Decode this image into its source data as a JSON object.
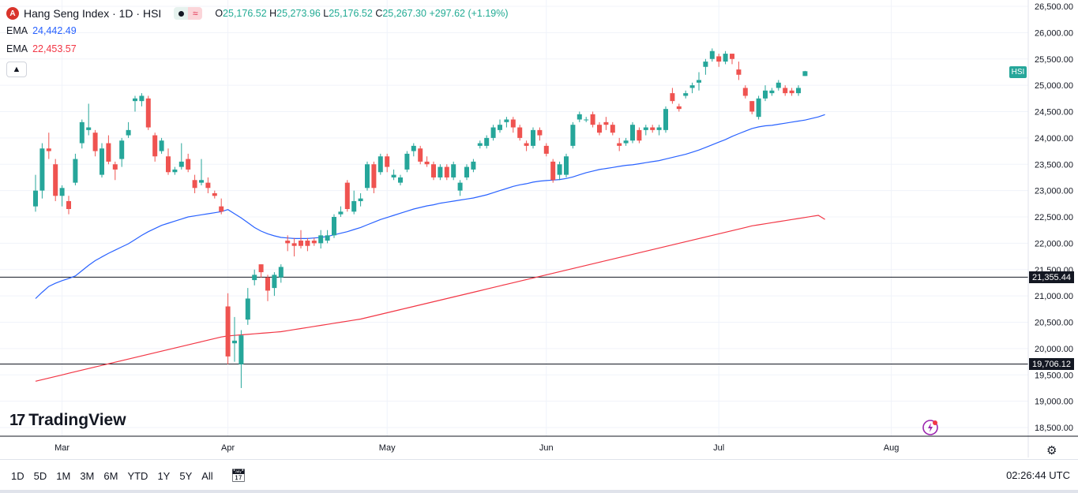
{
  "legend": {
    "symbol_icon": "A",
    "title": "Hang Seng Index · 1D · HSI",
    "ohlc": {
      "o_label": "O",
      "o": "25,176.52",
      "h_label": "H",
      "h": "25,273.96",
      "l_label": "L",
      "l": "25,176.52",
      "c_label": "C",
      "c": "25,267.30",
      "change": "+297.62 (+1.19%)"
    },
    "ema1": {
      "label": "EMA",
      "value": "24,442.49",
      "color": "#2962ff"
    },
    "ema2": {
      "label": "EMA",
      "value": "22,453.57",
      "color": "#f23645"
    },
    "collapse_icon": "chevron-up-icon"
  },
  "branding": {
    "logo_mark": "17",
    "logo_text": "TradingView"
  },
  "price_axis": {
    "symbol_tag": "HSI",
    "ticks": [
      "26,500.00",
      "26,000.00",
      "25,500.00",
      "25,000.00",
      "24,500.00",
      "24,000.00",
      "23,500.00",
      "23,000.00",
      "22,500.00",
      "22,000.00",
      "21,500.00",
      "21,000.00",
      "20,500.00",
      "20,000.00",
      "19,500.00",
      "19,000.00",
      "18,500.00"
    ],
    "levels": [
      {
        "label": "21,355.44",
        "value": 21355.44
      },
      {
        "label": "19,706.12",
        "value": 19706.12
      }
    ]
  },
  "time_axis": {
    "months": [
      "Mar",
      "Apr",
      "May",
      "Jun",
      "Jul",
      "Aug"
    ]
  },
  "timeframes": [
    "1D",
    "5D",
    "1M",
    "3M",
    "6M",
    "YTD",
    "1Y",
    "5Y",
    "All"
  ],
  "clock": "02:26:44 UTC",
  "colors": {
    "up": "#26a69a",
    "down": "#ef5350",
    "ema_fast": "#2962ff",
    "ema_slow": "#f23645",
    "grid": "#f0f3fa",
    "level_line": "#131722"
  },
  "chart_data": {
    "type": "candlestick",
    "title": "Hang Seng Index · 1D · HSI",
    "ylim": [
      18400,
      26600
    ],
    "x_start": "2025-02-24",
    "candles": [
      {
        "o": 22700,
        "h": 23300,
        "l": 22600,
        "c": 23000
      },
      {
        "o": 23000,
        "h": 23900,
        "l": 22850,
        "c": 23800
      },
      {
        "o": 23800,
        "h": 24100,
        "l": 23600,
        "c": 23750
      },
      {
        "o": 23500,
        "h": 23600,
        "l": 22800,
        "c": 22900
      },
      {
        "o": 22900,
        "h": 23100,
        "l": 22700,
        "c": 23050
      },
      {
        "o": 22800,
        "h": 22900,
        "l": 22550,
        "c": 22650
      },
      {
        "o": 23150,
        "h": 23700,
        "l": 23100,
        "c": 23600
      },
      {
        "o": 23900,
        "h": 24350,
        "l": 23800,
        "c": 24300
      },
      {
        "o": 24150,
        "h": 24650,
        "l": 24050,
        "c": 24200
      },
      {
        "o": 24100,
        "h": 24150,
        "l": 23650,
        "c": 23750
      },
      {
        "o": 23300,
        "h": 23900,
        "l": 23250,
        "c": 23800
      },
      {
        "o": 23900,
        "h": 24050,
        "l": 23500,
        "c": 23550
      },
      {
        "o": 23500,
        "h": 23550,
        "l": 23200,
        "c": 23400
      },
      {
        "o": 23600,
        "h": 24000,
        "l": 23450,
        "c": 23950
      },
      {
        "o": 24050,
        "h": 24300,
        "l": 24000,
        "c": 24150
      },
      {
        "o": 24700,
        "h": 24800,
        "l": 24500,
        "c": 24750
      },
      {
        "o": 24700,
        "h": 24850,
        "l": 24600,
        "c": 24800
      },
      {
        "o": 24750,
        "h": 24800,
        "l": 24150,
        "c": 24200
      },
      {
        "o": 24050,
        "h": 24100,
        "l": 23550,
        "c": 23650
      },
      {
        "o": 23750,
        "h": 24000,
        "l": 23700,
        "c": 23950
      },
      {
        "o": 23650,
        "h": 23800,
        "l": 23300,
        "c": 23350
      },
      {
        "o": 23350,
        "h": 23450,
        "l": 23300,
        "c": 23400
      },
      {
        "o": 23450,
        "h": 23900,
        "l": 23400,
        "c": 23550
      },
      {
        "o": 23600,
        "h": 23700,
        "l": 23350,
        "c": 23400
      },
      {
        "o": 23200,
        "h": 23300,
        "l": 22950,
        "c": 23050
      },
      {
        "o": 23150,
        "h": 23600,
        "l": 23100,
        "c": 23200
      },
      {
        "o": 23150,
        "h": 23250,
        "l": 22950,
        "c": 23050
      },
      {
        "o": 22950,
        "h": 23000,
        "l": 22850,
        "c": 22900
      },
      {
        "o": 22700,
        "h": 22850,
        "l": 22550,
        "c": 22600
      },
      {
        "o": 20800,
        "h": 21050,
        "l": 19700,
        "c": 19850
      },
      {
        "o": 20100,
        "h": 20600,
        "l": 19750,
        "c": 20150
      },
      {
        "o": 19700,
        "h": 20350,
        "l": 19250,
        "c": 20250
      },
      {
        "o": 20550,
        "h": 21150,
        "l": 20450,
        "c": 20950
      },
      {
        "o": 21300,
        "h": 21500,
        "l": 21200,
        "c": 21400
      },
      {
        "o": 21600,
        "h": 21600,
        "l": 21350,
        "c": 21450
      },
      {
        "o": 21350,
        "h": 21400,
        "l": 20900,
        "c": 21100
      },
      {
        "o": 21150,
        "h": 21450,
        "l": 21000,
        "c": 21400
      },
      {
        "o": 21350,
        "h": 21600,
        "l": 21250,
        "c": 21550
      },
      {
        "o": 22050,
        "h": 22150,
        "l": 21850,
        "c": 22000
      },
      {
        "o": 22000,
        "h": 22100,
        "l": 21750,
        "c": 21950
      },
      {
        "o": 22050,
        "h": 22250,
        "l": 21900,
        "c": 21950
      },
      {
        "o": 22050,
        "h": 22100,
        "l": 21850,
        "c": 21950
      },
      {
        "o": 22050,
        "h": 22100,
        "l": 21950,
        "c": 22000
      },
      {
        "o": 22000,
        "h": 22250,
        "l": 21900,
        "c": 22150
      },
      {
        "o": 22050,
        "h": 22250,
        "l": 22000,
        "c": 22150
      },
      {
        "o": 22150,
        "h": 22550,
        "l": 22100,
        "c": 22500
      },
      {
        "o": 22550,
        "h": 22700,
        "l": 22500,
        "c": 22600
      },
      {
        "o": 23150,
        "h": 23200,
        "l": 22600,
        "c": 22650
      },
      {
        "o": 22600,
        "h": 23000,
        "l": 22550,
        "c": 22800
      },
      {
        "o": 22800,
        "h": 22950,
        "l": 22700,
        "c": 22850
      },
      {
        "o": 23050,
        "h": 23550,
        "l": 23000,
        "c": 23500
      },
      {
        "o": 23500,
        "h": 23550,
        "l": 22950,
        "c": 23050
      },
      {
        "o": 23350,
        "h": 23700,
        "l": 23300,
        "c": 23650
      },
      {
        "o": 23650,
        "h": 23700,
        "l": 23350,
        "c": 23450
      },
      {
        "o": 23250,
        "h": 23400,
        "l": 23200,
        "c": 23300
      },
      {
        "o": 23150,
        "h": 23300,
        "l": 23100,
        "c": 23250
      },
      {
        "o": 23400,
        "h": 23750,
        "l": 23350,
        "c": 23700
      },
      {
        "o": 23750,
        "h": 23900,
        "l": 23650,
        "c": 23850
      },
      {
        "o": 23800,
        "h": 23850,
        "l": 23500,
        "c": 23550
      },
      {
        "o": 23550,
        "h": 23650,
        "l": 23450,
        "c": 23500
      },
      {
        "o": 23500,
        "h": 23550,
        "l": 23200,
        "c": 23250
      },
      {
        "o": 23250,
        "h": 23500,
        "l": 23200,
        "c": 23450
      },
      {
        "o": 23450,
        "h": 23500,
        "l": 23200,
        "c": 23250
      },
      {
        "o": 23250,
        "h": 23550,
        "l": 23200,
        "c": 23500
      },
      {
        "o": 23000,
        "h": 23200,
        "l": 22900,
        "c": 23150
      },
      {
        "o": 23250,
        "h": 23500,
        "l": 23200,
        "c": 23450
      },
      {
        "o": 23400,
        "h": 23600,
        "l": 23350,
        "c": 23550
      },
      {
        "o": 23850,
        "h": 23950,
        "l": 23800,
        "c": 23900
      },
      {
        "o": 23850,
        "h": 24050,
        "l": 23800,
        "c": 24000
      },
      {
        "o": 24000,
        "h": 24250,
        "l": 23950,
        "c": 24200
      },
      {
        "o": 24150,
        "h": 24350,
        "l": 24100,
        "c": 24250
      },
      {
        "o": 24300,
        "h": 24400,
        "l": 24200,
        "c": 24350
      },
      {
        "o": 24350,
        "h": 24400,
        "l": 24100,
        "c": 24200
      },
      {
        "o": 24200,
        "h": 24250,
        "l": 23950,
        "c": 24000
      },
      {
        "o": 23900,
        "h": 23950,
        "l": 23750,
        "c": 23850
      },
      {
        "o": 23850,
        "h": 24200,
        "l": 23800,
        "c": 24150
      },
      {
        "o": 24150,
        "h": 24200,
        "l": 23950,
        "c": 24050
      },
      {
        "o": 23850,
        "h": 23900,
        "l": 23650,
        "c": 23700
      },
      {
        "o": 23550,
        "h": 23600,
        "l": 23150,
        "c": 23200
      },
      {
        "o": 23300,
        "h": 23550,
        "l": 23200,
        "c": 23500
      },
      {
        "o": 23300,
        "h": 23700,
        "l": 23250,
        "c": 23650
      },
      {
        "o": 23850,
        "h": 24300,
        "l": 23800,
        "c": 24250
      },
      {
        "o": 24350,
        "h": 24500,
        "l": 24300,
        "c": 24450
      },
      {
        "o": 24350,
        "h": 24400,
        "l": 24300,
        "c": 24350
      },
      {
        "o": 24450,
        "h": 24500,
        "l": 24200,
        "c": 24250
      },
      {
        "o": 24250,
        "h": 24300,
        "l": 24050,
        "c": 24100
      },
      {
        "o": 24300,
        "h": 24400,
        "l": 24150,
        "c": 24250
      },
      {
        "o": 24250,
        "h": 24300,
        "l": 24050,
        "c": 24100
      },
      {
        "o": 23900,
        "h": 24000,
        "l": 23750,
        "c": 23850
      },
      {
        "o": 23900,
        "h": 24000,
        "l": 23850,
        "c": 23950
      },
      {
        "o": 23950,
        "h": 24300,
        "l": 23900,
        "c": 24250
      },
      {
        "o": 24150,
        "h": 24200,
        "l": 23900,
        "c": 23950
      },
      {
        "o": 24150,
        "h": 24250,
        "l": 24050,
        "c": 24200
      },
      {
        "o": 24200,
        "h": 24250,
        "l": 24100,
        "c": 24150
      },
      {
        "o": 24150,
        "h": 24250,
        "l": 24050,
        "c": 24200
      },
      {
        "o": 24150,
        "h": 24600,
        "l": 24100,
        "c": 24550
      },
      {
        "o": 24850,
        "h": 24950,
        "l": 24650,
        "c": 24700
      },
      {
        "o": 24600,
        "h": 24650,
        "l": 24500,
        "c": 24550
      },
      {
        "o": 24800,
        "h": 24900,
        "l": 24750,
        "c": 24850
      },
      {
        "o": 24950,
        "h": 25050,
        "l": 24850,
        "c": 25000
      },
      {
        "o": 25050,
        "h": 25250,
        "l": 24900,
        "c": 25100
      },
      {
        "o": 25350,
        "h": 25500,
        "l": 25200,
        "c": 25450
      },
      {
        "o": 25500,
        "h": 25700,
        "l": 25450,
        "c": 25650
      },
      {
        "o": 25550,
        "h": 25600,
        "l": 25350,
        "c": 25450
      },
      {
        "o": 25450,
        "h": 25650,
        "l": 25400,
        "c": 25600
      },
      {
        "o": 25600,
        "h": 25600,
        "l": 25400,
        "c": 25500
      },
      {
        "o": 25300,
        "h": 25450,
        "l": 25100,
        "c": 25200
      },
      {
        "o": 24950,
        "h": 25000,
        "l": 24750,
        "c": 24800
      },
      {
        "o": 24700,
        "h": 24700,
        "l": 24450,
        "c": 24500
      },
      {
        "o": 24400,
        "h": 24800,
        "l": 24350,
        "c": 24750
      },
      {
        "o": 24750,
        "h": 25000,
        "l": 24700,
        "c": 24900
      },
      {
        "o": 24850,
        "h": 24950,
        "l": 24800,
        "c": 24900
      },
      {
        "o": 24950,
        "h": 25100,
        "l": 24900,
        "c": 25050
      },
      {
        "o": 24950,
        "h": 25000,
        "l": 24800,
        "c": 24850
      },
      {
        "o": 24900,
        "h": 24950,
        "l": 24800,
        "c": 24850
      },
      {
        "o": 24850,
        "h": 25000,
        "l": 24800,
        "c": 24950
      },
      {
        "o": 25176.52,
        "h": 25273.96,
        "l": 25176.52,
        "c": 25267.3
      }
    ],
    "ema_fast": [
      20950,
      21070,
      21180,
      21240,
      21290,
      21330,
      21380,
      21480,
      21580,
      21670,
      21740,
      21810,
      21870,
      21930,
      21990,
      22070,
      22150,
      22220,
      22280,
      22340,
      22380,
      22420,
      22460,
      22500,
      22520,
      22540,
      22560,
      22580,
      22600,
      22640,
      22560,
      22480,
      22390,
      22300,
      22230,
      22180,
      22140,
      22110,
      22100,
      22090,
      22090,
      22090,
      22100,
      22110,
      22130,
      22160,
      22190,
      22220,
      22260,
      22300,
      22350,
      22400,
      22450,
      22490,
      22530,
      22570,
      22610,
      22650,
      22680,
      22710,
      22730,
      22760,
      22780,
      22800,
      22820,
      22840,
      22860,
      22890,
      22920,
      22960,
      23000,
      23040,
      23080,
      23110,
      23130,
      23160,
      23180,
      23190,
      23200,
      23210,
      23230,
      23260,
      23300,
      23340,
      23370,
      23400,
      23420,
      23440,
      23460,
      23480,
      23490,
      23510,
      23530,
      23550,
      23570,
      23600,
      23630,
      23660,
      23690,
      23730,
      23770,
      23820,
      23870,
      23920,
      23970,
      24030,
      24080,
      24130,
      24180,
      24210,
      24230,
      24240,
      24260,
      24280,
      24300,
      24320,
      24340,
      24370,
      24400,
      24442.49
    ],
    "ema_slow": [
      19380,
      19410,
      19440,
      19470,
      19500,
      19530,
      19560,
      19590,
      19620,
      19650,
      19680,
      19710,
      19740,
      19770,
      19800,
      19830,
      19860,
      19890,
      19920,
      19950,
      19980,
      20010,
      20040,
      20070,
      20100,
      20130,
      20160,
      20190,
      20220,
      20240,
      20250,
      20260,
      20270,
      20280,
      20290,
      20300,
      20310,
      20320,
      20340,
      20360,
      20380,
      20400,
      20420,
      20440,
      20460,
      20480,
      20500,
      20520,
      20540,
      20560,
      20590,
      20620,
      20650,
      20680,
      20710,
      20740,
      20770,
      20800,
      20830,
      20860,
      20890,
      20920,
      20950,
      20980,
      21010,
      21040,
      21070,
      21100,
      21130,
      21160,
      21190,
      21220,
      21250,
      21280,
      21310,
      21340,
      21370,
      21400,
      21430,
      21460,
      21490,
      21520,
      21550,
      21580,
      21610,
      21640,
      21670,
      21700,
      21730,
      21760,
      21790,
      21820,
      21850,
      21880,
      21910,
      21940,
      21970,
      22000,
      22030,
      22060,
      22090,
      22120,
      22150,
      22180,
      22210,
      22240,
      22270,
      22300,
      22330,
      22350,
      22370,
      22390,
      22410,
      22430,
      22450,
      22470,
      22490,
      22510,
      22530,
      22453.57
    ]
  }
}
